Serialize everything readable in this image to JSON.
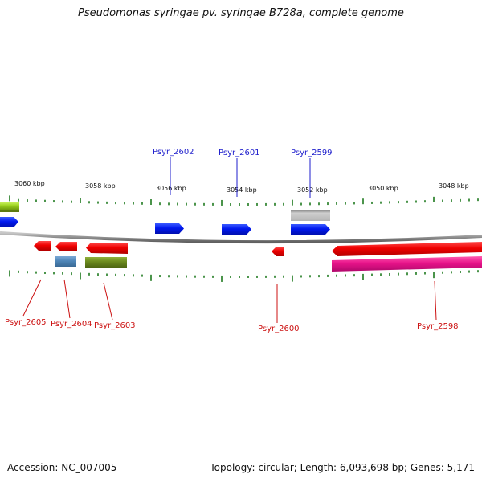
{
  "header": {
    "title": "Pseudomonas syringae pv. syringae B728a, complete genome"
  },
  "footer": {
    "accession": "Accession: NC_007005",
    "summary": "Topology: circular; Length: 6,093,698 bp; Genes: 5,171"
  },
  "map": {
    "kbp_labels": [
      "3060 kbp",
      "3058 kbp",
      "3056 kbp",
      "3054 kbp",
      "3052 kbp",
      "3050 kbp",
      "3048 kbp"
    ],
    "genes_above": [
      "Psyr_2602",
      "Psyr_2601",
      "Psyr_2599"
    ],
    "genes_below": [
      "Psyr_2605",
      "Psyr_2604",
      "Psyr_2603",
      "Psyr_2600",
      "Psyr_2598"
    ]
  },
  "colors": {
    "forward_gene": "#0018ee",
    "reverse_gene": "#ee0000",
    "rna_feature": "#e8138a",
    "grey_feature": "#b4b4b4",
    "olive_feature": "#6c8a1e",
    "steelblue_feature": "#4f86b8",
    "lime_feature": "#9ad11e",
    "backbone": "#8c8c8c",
    "tick": "#1e7a1e",
    "label_above": "#1e1ecc",
    "label_below": "#cc1111"
  }
}
